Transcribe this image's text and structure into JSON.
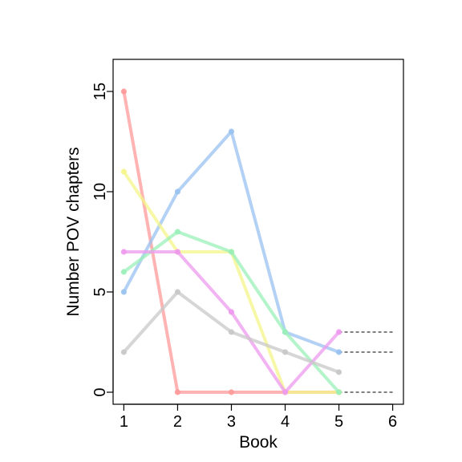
{
  "chart_data": {
    "type": "line",
    "xlabel": "Book",
    "ylabel": "Number POV chapters",
    "x_ticks": [
      1,
      2,
      3,
      4,
      5,
      6
    ],
    "y_ticks": [
      0,
      5,
      10,
      15
    ],
    "xlim": [
      0.8,
      6.2
    ],
    "ylim": [
      -0.6,
      16.6
    ],
    "grid": false,
    "legend": "none",
    "series": [
      {
        "color": "#ff9999",
        "x": [
          1,
          2,
          3,
          4,
          5
        ],
        "y": [
          15,
          0,
          0,
          0,
          0
        ]
      },
      {
        "color": "#99c2f0",
        "x": [
          1,
          2,
          3,
          4,
          5
        ],
        "y": [
          5,
          10,
          13,
          3,
          2
        ]
      },
      {
        "color": "#f4f68a",
        "x": [
          1,
          2,
          3,
          4,
          5
        ],
        "y": [
          11,
          7,
          7,
          0,
          0
        ]
      },
      {
        "color": "#9af0b8",
        "x": [
          1,
          2,
          3,
          4,
          5
        ],
        "y": [
          6,
          8,
          7,
          3,
          0
        ]
      },
      {
        "color": "#ee99ee",
        "x": [
          1,
          2,
          3,
          4,
          5
        ],
        "y": [
          7,
          7,
          4,
          0,
          3
        ]
      },
      {
        "color": "#c8c8c8",
        "x": [
          1,
          2,
          3,
          4,
          5
        ],
        "y": [
          2,
          5,
          3,
          2,
          1
        ]
      }
    ],
    "projections": [
      {
        "x": [
          5,
          6
        ],
        "y": [
          3,
          3
        ]
      },
      {
        "x": [
          5,
          6
        ],
        "y": [
          2,
          2
        ]
      },
      {
        "x": [
          5,
          6
        ],
        "y": [
          0,
          0
        ]
      }
    ]
  }
}
